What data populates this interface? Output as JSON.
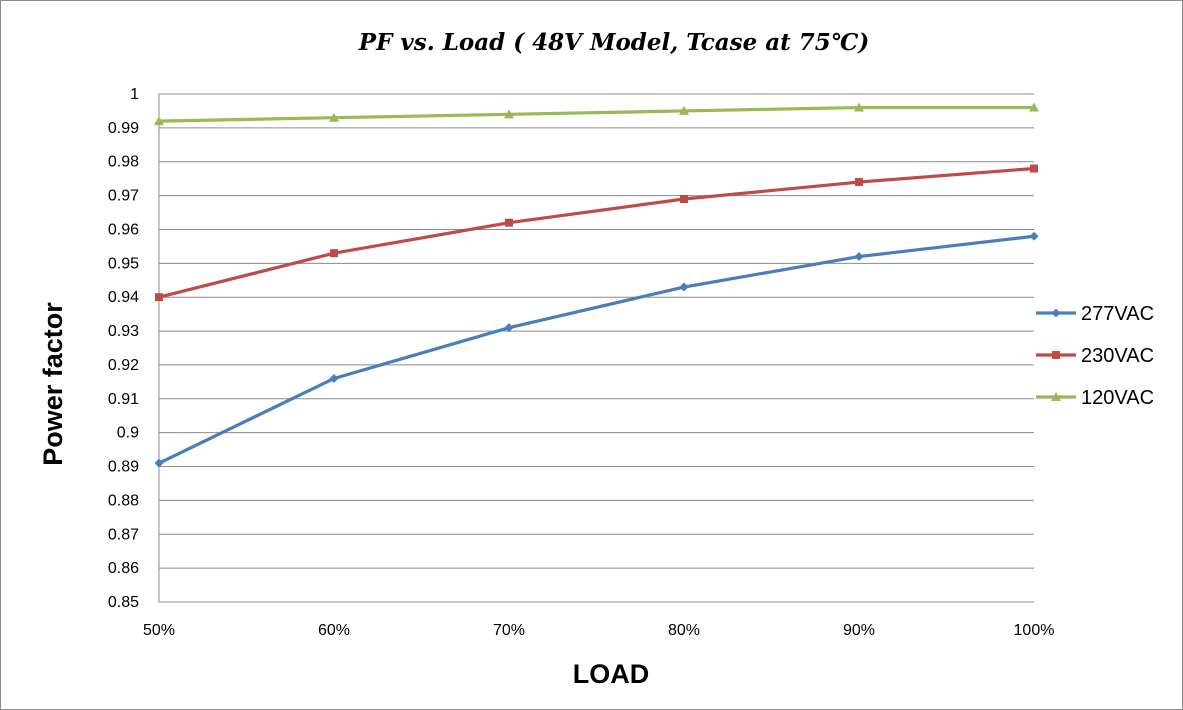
{
  "chart_data": {
    "type": "line",
    "title": "PF vs. Load ( 48V Model, Tcase at 75℃)",
    "xlabel": "LOAD",
    "ylabel": "Power factor",
    "categories": [
      "50%",
      "60%",
      "70%",
      "80%",
      "90%",
      "100%"
    ],
    "ylim": [
      0.85,
      1.0
    ],
    "ytick_step": 0.01,
    "yticks": [
      "0.85",
      "0.86",
      "0.87",
      "0.88",
      "0.89",
      "0.9",
      "0.91",
      "0.92",
      "0.93",
      "0.94",
      "0.95",
      "0.96",
      "0.97",
      "0.98",
      "0.99",
      "1"
    ],
    "grid": "horizontal",
    "legend_position": "right",
    "series": [
      {
        "name": "277VAC",
        "color": "#4a7ebb",
        "marker": "diamond",
        "values": [
          0.891,
          0.916,
          0.931,
          0.943,
          0.952,
          0.958
        ]
      },
      {
        "name": "230VAC",
        "color": "#be4b48",
        "marker": "square",
        "values": [
          0.94,
          0.953,
          0.962,
          0.969,
          0.974,
          0.978
        ]
      },
      {
        "name": "120VAC",
        "color": "#98b954",
        "marker": "triangle",
        "values": [
          0.992,
          0.993,
          0.994,
          0.995,
          0.996,
          0.996
        ]
      }
    ]
  }
}
